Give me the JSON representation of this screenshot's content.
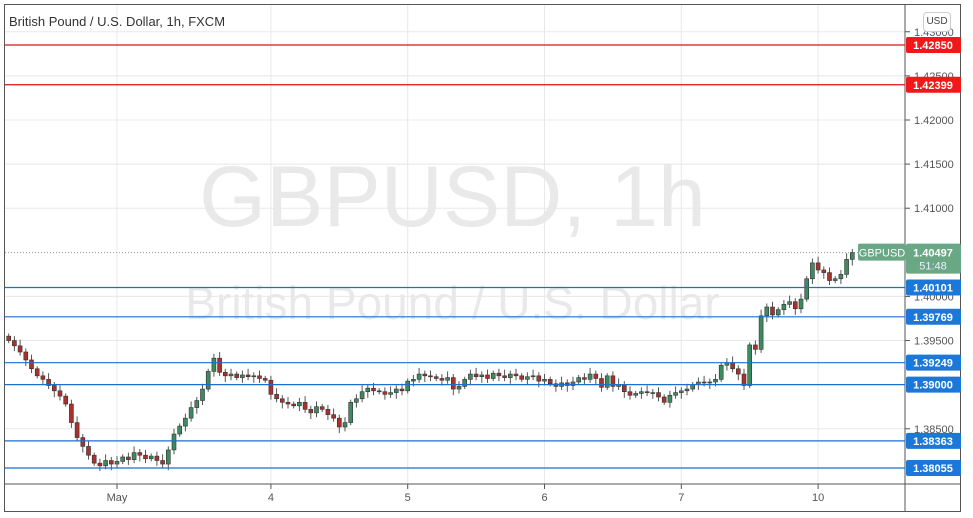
{
  "header": {
    "title": "British Pound / U.S. Dollar, 1h, FXCM",
    "currency_button": "USD"
  },
  "watermark": {
    "symbol_line": "GBPUSD, 1h",
    "name_line": "British Pound / U.S. Dollar"
  },
  "chart_data": {
    "type": "candlestick",
    "symbol": "GBPUSD",
    "interval": "1h",
    "ylim": [
      1.3775,
      1.4335
    ],
    "y_ticks": [
      1.43,
      1.425,
      1.42,
      1.415,
      1.41,
      1.4,
      1.395,
      1.385
    ],
    "y_tick_labels": [
      "1.43000",
      "1.42500",
      "1.42000",
      "1.41500",
      "1.41000",
      "1.40000",
      "1.39500",
      "1.38500"
    ],
    "x_tick_labels": [
      {
        "label": "May",
        "index": 19
      },
      {
        "label": "4",
        "index": 46
      },
      {
        "label": "5",
        "index": 70
      },
      {
        "label": "6",
        "index": 94
      },
      {
        "label": "7",
        "index": 118
      },
      {
        "label": "10",
        "index": 142
      }
    ],
    "grid": true,
    "first_open": 1.3955,
    "closes": [
      1.395,
      1.3944,
      1.3937,
      1.3928,
      1.3918,
      1.391,
      1.3906,
      1.3899,
      1.3893,
      1.3887,
      1.3878,
      1.3857,
      1.384,
      1.383,
      1.382,
      1.3811,
      1.3808,
      1.3814,
      1.381,
      1.3813,
      1.3818,
      1.3815,
      1.3823,
      1.382,
      1.3816,
      1.3819,
      1.3814,
      1.381,
      1.3826,
      1.3844,
      1.3853,
      1.3862,
      1.3874,
      1.3882,
      1.3895,
      1.3915,
      1.393,
      1.3914,
      1.391,
      1.3912,
      1.3908,
      1.3911,
      1.3909,
      1.391,
      1.3907,
      1.3905,
      1.3889,
      1.3884,
      1.388,
      1.3878,
      1.3876,
      1.388,
      1.3872,
      1.3868,
      1.3875,
      1.3872,
      1.3866,
      1.3862,
      1.3852,
      1.3857,
      1.388,
      1.3884,
      1.3892,
      1.3896,
      1.3893,
      1.3892,
      1.3889,
      1.3891,
      1.3895,
      1.3893,
      1.3904,
      1.3906,
      1.3912,
      1.391,
      1.3909,
      1.3907,
      1.3905,
      1.3908,
      1.3895,
      1.3898,
      1.3906,
      1.3912,
      1.3909,
      1.3911,
      1.3907,
      1.3913,
      1.391,
      1.3908,
      1.3912,
      1.391,
      1.3906,
      1.3909,
      1.391,
      1.3904,
      1.3906,
      1.3901,
      1.3898,
      1.3902,
      1.3899,
      1.3903,
      1.3908,
      1.3906,
      1.3912,
      1.3907,
      1.3897,
      1.391,
      1.3898,
      1.39,
      1.3892,
      1.3888,
      1.389,
      1.3892,
      1.3891,
      1.3891,
      1.3886,
      1.388,
      1.3888,
      1.3891,
      1.3893,
      1.3895,
      1.39,
      1.3903,
      1.3902,
      1.3903,
      1.3906,
      1.3922,
      1.3925,
      1.3918,
      1.3912,
      1.3899,
      1.3945,
      1.394,
      1.3978,
      1.3988,
      1.3979,
      1.3985,
      1.3991,
      1.3994,
      1.3986,
      1.3997,
      1.402,
      1.4038,
      1.403,
      1.4027,
      1.4018,
      1.402,
      1.4025,
      1.4042,
      1.40497
    ],
    "horizontal_lines": [
      {
        "price": "1.42850",
        "color": "#e01010"
      },
      {
        "price": "1.42399",
        "color": "#e01010"
      },
      {
        "price": "1.40101",
        "color": "#1c6fd1"
      },
      {
        "price": "1.39769",
        "color": "#1c6fd1"
      },
      {
        "price": "1.39249",
        "color": "#1c6fd1"
      },
      {
        "price": "1.39000",
        "color": "#1c6fd1"
      },
      {
        "price": "1.38363",
        "color": "#1c6fd1"
      },
      {
        "price": "1.38055",
        "color": "#1c6fd1"
      }
    ],
    "last_price": {
      "symbol": "GBPUSD",
      "price": "1.40497",
      "countdown": "51:48",
      "color": "#6aa785"
    },
    "up_color": "#3c8a5f",
    "down_color": "#a8322b"
  }
}
